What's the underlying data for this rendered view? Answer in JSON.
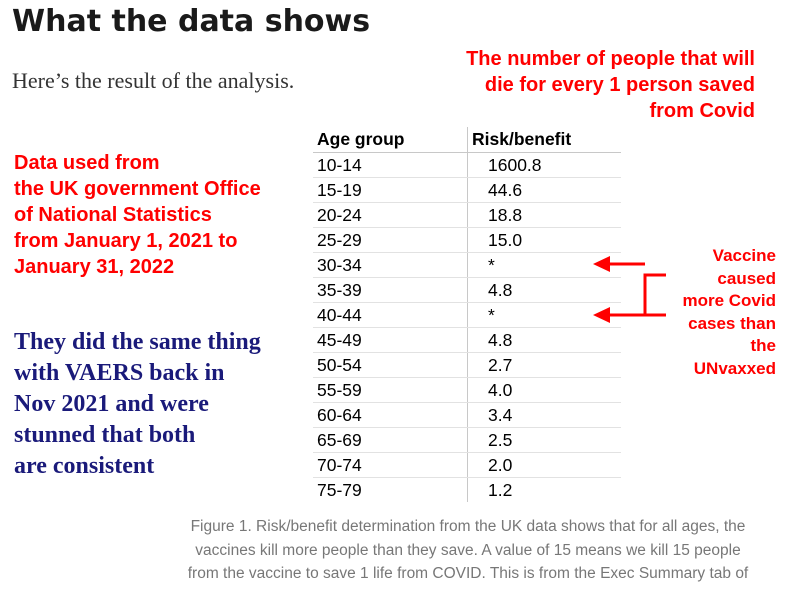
{
  "heading": "What the data shows",
  "intro": "Here’s the result of the analysis.",
  "note_top": [
    "The number of people that will",
    "die for every 1 person saved",
    "from Covid"
  ],
  "note_left": [
    "Data used from",
    "the UK government Office",
    "of National Statistics",
    "from January 1, 2021 to",
    "January 31, 2022"
  ],
  "note_blue": [
    "They did the same thing",
    "with VAERS back in",
    "Nov 2021 and were",
    "stunned that both",
    "are consistent"
  ],
  "note_right": [
    "Vaccine",
    "caused",
    "more Covid",
    "cases than",
    "the",
    "UNvaxxed"
  ],
  "table": {
    "headers": [
      "Age group",
      "Risk/benefit"
    ],
    "rows": [
      [
        "10-14",
        "1600.8"
      ],
      [
        "15-19",
        "44.6"
      ],
      [
        "20-24",
        "18.8"
      ],
      [
        "25-29",
        "15.0"
      ],
      [
        "30-34",
        "*"
      ],
      [
        "35-39",
        "4.8"
      ],
      [
        "40-44",
        "*"
      ],
      [
        "45-49",
        "4.8"
      ],
      [
        "50-54",
        "2.7"
      ],
      [
        "55-59",
        "4.0"
      ],
      [
        "60-64",
        "3.4"
      ],
      [
        "65-69",
        "2.5"
      ],
      [
        "70-74",
        "2.0"
      ],
      [
        "75-79",
        "1.2"
      ]
    ]
  },
  "caption": [
    "Figure 1. Risk/benefit determination from the UK data shows that for all ages, the",
    "vaccines kill more people than they save. A value of 15 means we kill 15 people",
    "from the vaccine to save 1 life from COVID. This is from the Exec Summary tab of"
  ],
  "colors": {
    "annotation": "#ff0000",
    "blue_note": "#1a1a7a",
    "caption": "#777777"
  }
}
